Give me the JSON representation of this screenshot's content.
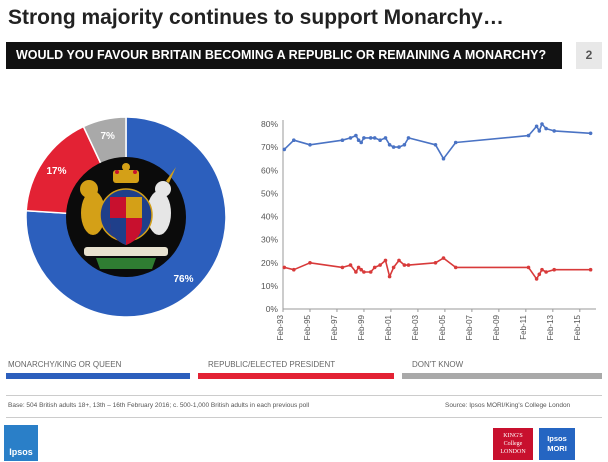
{
  "header": {
    "title": "Strong majority continues to support Monarchy…",
    "question": "WOULD YOU FAVOUR BRITAIN BECOMING A REPUBLIC OR REMAINING A MONARCHY?",
    "page_number": "2"
  },
  "colors": {
    "monarchy": "#2c5fbd",
    "republic": "#e32234",
    "dont_know": "#a9a9a9",
    "line_blue": "#4a73c4",
    "line_red": "#d83a3a"
  },
  "chart_data": [
    {
      "type": "pie",
      "style": "donut",
      "labels": [
        "Monarchy/King or Queen",
        "Republic/Elected President",
        "Don't know"
      ],
      "values": [
        76,
        17,
        7
      ],
      "data_labels": [
        "76%",
        "17%",
        "7%"
      ],
      "center": "royal-coat-of-arms"
    },
    {
      "type": "line",
      "x_tick_labels": [
        "Feb-93",
        "Feb-95",
        "Feb-97",
        "Feb-99",
        "Feb-01",
        "Feb-03",
        "Feb-05",
        "Feb-07",
        "Feb-09",
        "Feb-11",
        "Feb-13",
        "Feb-15"
      ],
      "x_tick_years": [
        1993,
        1995,
        1997,
        1999,
        2001,
        2003,
        2005,
        2007,
        2009,
        2011,
        2013,
        2015
      ],
      "xlim": [
        1993,
        2016.2
      ],
      "ylim": [
        0,
        80
      ],
      "y_ticks": [
        0,
        10,
        20,
        30,
        40,
        50,
        60,
        70,
        80
      ],
      "y_tick_labels": [
        "0%",
        "10%",
        "20%",
        "30%",
        "40%",
        "50%",
        "60%",
        "70%",
        "80%"
      ],
      "series": [
        {
          "name": "Monarchy/King or Queen",
          "color": "#4a73c4",
          "x": [
            1993.1,
            1993.8,
            1995.0,
            1997.4,
            1998.0,
            1998.4,
            1998.6,
            1998.8,
            1999.0,
            1999.5,
            1999.8,
            2000.2,
            2000.6,
            2000.9,
            2001.2,
            2001.6,
            2002.0,
            2002.3,
            2004.3,
            2004.9,
            2005.8,
            2011.2,
            2011.8,
            2012.0,
            2012.2,
            2012.5,
            2013.1,
            2015.8
          ],
          "y": [
            69,
            73,
            71,
            73,
            74,
            75,
            73,
            72,
            74,
            74,
            74,
            73,
            74,
            71,
            70,
            70,
            71,
            74,
            71,
            65,
            72,
            75,
            79,
            77,
            80,
            78,
            77,
            76
          ]
        },
        {
          "name": "Republic/Elected President",
          "color": "#d83a3a",
          "x": [
            1993.1,
            1993.8,
            1995.0,
            1997.4,
            1998.0,
            1998.4,
            1998.6,
            1998.8,
            1999.0,
            1999.5,
            1999.8,
            2000.2,
            2000.6,
            2000.9,
            2001.2,
            2001.6,
            2002.0,
            2002.3,
            2004.3,
            2004.9,
            2005.8,
            2011.2,
            2011.8,
            2012.0,
            2012.2,
            2012.5,
            2013.1,
            2015.8
          ],
          "y": [
            18,
            17,
            20,
            18,
            19,
            16,
            18,
            17,
            16,
            16,
            18,
            19,
            21,
            14,
            18,
            21,
            19,
            19,
            20,
            22,
            18,
            18,
            13,
            15,
            17,
            16,
            17,
            17
          ]
        }
      ]
    }
  ],
  "legend": {
    "monarchy": "MONARCHY/KING  OR QUEEN",
    "republic": "REPUBLIC/ELECTED PRESIDENT",
    "dont_know": "DON'T KNOW"
  },
  "footer": {
    "base": "Base: 504 British adults 18+, 13th – 16th  February 2016; c. 500-1,000 British adults in each previous poll",
    "source": "Source: Ipsos MORI/King's  College London"
  },
  "logos": {
    "ipsos": "Ipsos",
    "kings_line1": "KING'S",
    "kings_line2": "College",
    "kings_line3": "LONDON",
    "mori_line1": "Ipsos",
    "mori_line2": "MORI"
  }
}
